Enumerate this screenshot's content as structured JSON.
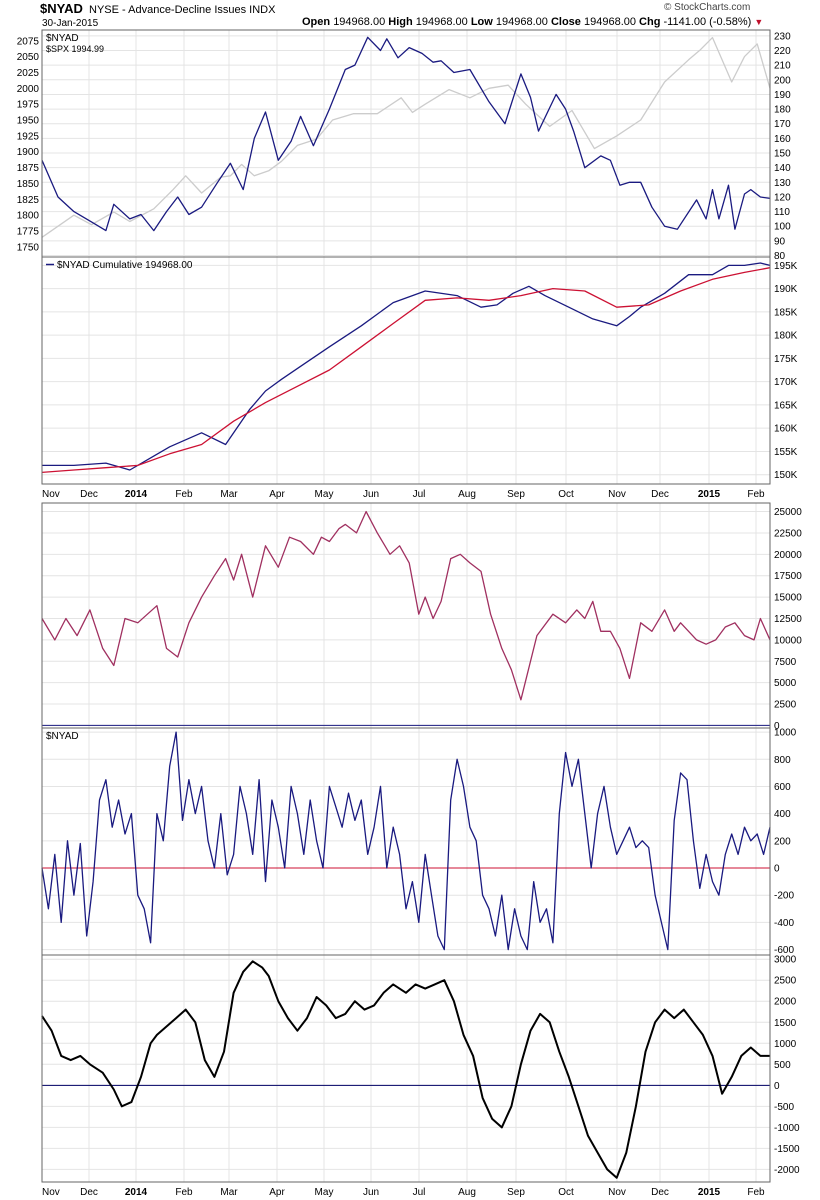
{
  "header": {
    "symbol": "$NYAD",
    "description": "NYSE - Advance-Decline Issues INDX",
    "date": "30-Jan-2015",
    "open_label": "Open",
    "open_value": "194968.00",
    "high_label": "High",
    "high_value": "194968.00",
    "low_label": "Low",
    "low_value": "194968.00",
    "close_label": "Close",
    "close_value": "194968.00",
    "chg_label": "Chg",
    "chg_value": "-1141.00 (-0.58%)",
    "chg_icon": "down-triangle-icon",
    "logo": "© StockCharts.com"
  },
  "colors": {
    "navy": "#1a1a80",
    "gray": "#cccccc",
    "red": "#cc1133",
    "maroon": "#a03060",
    "black": "#000000",
    "grid": "#e4e4e4"
  },
  "chart_data": [
    {
      "type": "line",
      "panel": "price",
      "legend": [
        "$NYAD",
        "$SPX 1994.99"
      ],
      "x_range": [
        0,
        456
      ],
      "left_axis": {
        "ticks": [
          1750,
          1775,
          1800,
          1825,
          1850,
          1875,
          1900,
          1925,
          1950,
          1975,
          2000,
          2025,
          2050,
          2075
        ],
        "range": [
          1734,
          2092
        ]
      },
      "right_axis": {
        "ticks": [
          80,
          90,
          100,
          110,
          120,
          130,
          140,
          150,
          160,
          170,
          180,
          190,
          200,
          210,
          220,
          230
        ],
        "range": [
          79,
          234
        ]
      },
      "series": [
        {
          "name": "$SPX",
          "axis": "left",
          "color": "gray",
          "x": [
            0,
            20,
            31,
            45,
            55,
            70,
            82,
            90,
            100,
            112,
            118,
            125,
            133,
            142,
            150,
            160,
            172,
            182,
            195,
            210,
            225,
            232,
            240,
            255,
            268,
            280,
            292,
            303,
            318,
            332,
            346,
            360,
            375,
            390,
            405,
            412,
            420,
            432,
            440,
            448,
            456
          ],
          "y": [
            1765,
            1800,
            1785,
            1805,
            1790,
            1810,
            1840,
            1862,
            1835,
            1860,
            1862,
            1880,
            1862,
            1870,
            1885,
            1910,
            1920,
            1950,
            1960,
            1960,
            1985,
            1962,
            1975,
            1998,
            1985,
            2000,
            2005,
            1975,
            1940,
            1965,
            1905,
            1925,
            1950,
            2010,
            2045,
            2060,
            2080,
            2010,
            2050,
            2070,
            2000
          ]
        },
        {
          "name": "$NYAD",
          "axis": "right",
          "color": "navy",
          "x": [
            0,
            10,
            20,
            31,
            40,
            45,
            55,
            62,
            70,
            78,
            85,
            92,
            100,
            110,
            118,
            126,
            133,
            140,
            148,
            156,
            162,
            170,
            180,
            190,
            196,
            204,
            212,
            216,
            223,
            230,
            238,
            245,
            250,
            258,
            268,
            280,
            290,
            300,
            306,
            311,
            322,
            328,
            333,
            340,
            350,
            356,
            362,
            368,
            375,
            382,
            390,
            398,
            410,
            416,
            420,
            424,
            430,
            434,
            440,
            444,
            450,
            456
          ],
          "y": [
            145,
            120,
            110,
            103,
            97,
            115,
            105,
            108,
            97,
            110,
            120,
            108,
            113,
            130,
            143,
            125,
            160,
            178,
            145,
            158,
            175,
            155,
            180,
            207,
            210,
            229,
            220,
            228,
            215,
            222,
            218,
            212,
            213,
            205,
            207,
            185,
            170,
            204,
            188,
            165,
            190,
            180,
            165,
            140,
            148,
            145,
            128,
            130,
            130,
            113,
            100,
            98,
            118,
            105,
            125,
            105,
            128,
            98,
            122,
            125,
            120,
            119
          ]
        }
      ]
    },
    {
      "type": "line",
      "panel": "cumulative",
      "legend": [
        "$NYAD Cumulative 194968.00"
      ],
      "x_range": [
        0,
        456
      ],
      "right_axis": {
        "ticks": [
          150000,
          155000,
          160000,
          165000,
          170000,
          175000,
          180000,
          185000,
          190000,
          195000
        ],
        "tick_labels": [
          "150K",
          "155K",
          "160K",
          "165K",
          "170K",
          "175K",
          "180K",
          "185K",
          "190K",
          "195K"
        ],
        "range": [
          148000,
          196800
        ]
      },
      "series": [
        {
          "name": "$NYAD Cumulative",
          "color": "navy",
          "x": [
            0,
            20,
            40,
            55,
            70,
            80,
            100,
            115,
            130,
            140,
            150,
            165,
            180,
            200,
            220,
            240,
            260,
            275,
            285,
            295,
            305,
            315,
            330,
            345,
            360,
            368,
            375,
            390,
            405,
            420,
            430,
            440,
            450,
            456
          ],
          "y": [
            152000,
            152000,
            152500,
            151000,
            154000,
            156000,
            159000,
            156500,
            164000,
            168000,
            170500,
            174000,
            177500,
            182000,
            187000,
            189500,
            188500,
            186000,
            186500,
            189000,
            190500,
            188500,
            186000,
            183500,
            182000,
            184000,
            186000,
            189000,
            193000,
            193000,
            195000,
            195000,
            195500,
            195000
          ]
        },
        {
          "name": "Moving average",
          "color": "red",
          "x": [
            0,
            20,
            40,
            60,
            80,
            100,
            120,
            140,
            160,
            180,
            200,
            220,
            240,
            260,
            280,
            300,
            320,
            340,
            360,
            380,
            400,
            420,
            440,
            456
          ],
          "y": [
            150500,
            151000,
            151500,
            152000,
            154500,
            156500,
            161500,
            165500,
            169000,
            172500,
            177500,
            182500,
            187500,
            188000,
            187500,
            188500,
            190000,
            189500,
            186000,
            186500,
            189500,
            192000,
            193500,
            194500
          ]
        }
      ]
    },
    {
      "type": "line",
      "panel": "oscillator-1",
      "x_range": [
        0,
        456
      ],
      "right_axis": {
        "ticks": [
          0,
          2500,
          5000,
          7500,
          10000,
          12500,
          15000,
          17500,
          20000,
          22500,
          25000
        ],
        "range": [
          -300,
          26000
        ]
      },
      "reference_line": 0,
      "series": [
        {
          "name": "Oscillator",
          "color": "maroon",
          "x": [
            0,
            8,
            15,
            22,
            30,
            38,
            45,
            52,
            60,
            66,
            72,
            78,
            85,
            92,
            100,
            108,
            115,
            120,
            125,
            132,
            140,
            148,
            155,
            162,
            170,
            175,
            180,
            186,
            190,
            197,
            203,
            210,
            218,
            224,
            230,
            236,
            240,
            245,
            250,
            256,
            262,
            268,
            275,
            281,
            288,
            294,
            300,
            310,
            320,
            328,
            335,
            340,
            345,
            350,
            356,
            362,
            368,
            375,
            382,
            390,
            396,
            400,
            410,
            416,
            422,
            428,
            434,
            440,
            446,
            450,
            456
          ],
          "y": [
            12500,
            10000,
            12500,
            10500,
            13500,
            9000,
            7000,
            12500,
            12000,
            13000,
            14000,
            9000,
            8000,
            12000,
            15000,
            17500,
            19500,
            17000,
            20000,
            15000,
            21000,
            18500,
            22000,
            21500,
            20000,
            22000,
            21500,
            23000,
            23500,
            22500,
            25000,
            22500,
            20000,
            21000,
            19000,
            13000,
            15000,
            12500,
            14500,
            19500,
            20000,
            19000,
            18000,
            13000,
            9000,
            6500,
            3000,
            10500,
            13000,
            12000,
            13500,
            12500,
            14500,
            11000,
            11000,
            9000,
            5500,
            12000,
            11000,
            13500,
            11000,
            12000,
            10000,
            9500,
            10000,
            11500,
            12000,
            10500,
            10000,
            12500,
            10000
          ]
        }
      ]
    },
    {
      "type": "line",
      "panel": "nyad-daily",
      "legend": [
        "$NYAD"
      ],
      "x_range": [
        0,
        456
      ],
      "right_axis": {
        "ticks": [
          -600,
          -400,
          -200,
          0,
          200,
          400,
          600,
          800,
          1000
        ],
        "range": [
          -640,
          1030
        ]
      },
      "reference_line": 0,
      "series": [
        {
          "name": "$NYAD",
          "color": "navy",
          "x": [
            0,
            4,
            8,
            12,
            16,
            20,
            24,
            28,
            32,
            36,
            40,
            44,
            48,
            52,
            56,
            60,
            64,
            68,
            72,
            76,
            80,
            84,
            88,
            92,
            96,
            100,
            104,
            108,
            112,
            116,
            120,
            124,
            128,
            132,
            136,
            140,
            144,
            148,
            152,
            156,
            160,
            164,
            168,
            172,
            176,
            180,
            184,
            188,
            192,
            196,
            200,
            204,
            208,
            212,
            216,
            220,
            224,
            228,
            232,
            236,
            240,
            244,
            248,
            252,
            256,
            260,
            264,
            268,
            272,
            276,
            280,
            284,
            288,
            292,
            296,
            300,
            304,
            308,
            312,
            316,
            320,
            324,
            328,
            332,
            336,
            340,
            344,
            348,
            352,
            356,
            360,
            364,
            368,
            372,
            376,
            380,
            384,
            388,
            392,
            396,
            400,
            404,
            408,
            412,
            416,
            420,
            424,
            428,
            432,
            436,
            440,
            444,
            448,
            452,
            456
          ],
          "y": [
            0,
            -300,
            100,
            -400,
            200,
            -200,
            180,
            -500,
            -100,
            500,
            650,
            300,
            500,
            250,
            400,
            -200,
            -300,
            -550,
            400,
            200,
            750,
            1000,
            350,
            650,
            400,
            600,
            200,
            0,
            400,
            -50,
            100,
            600,
            400,
            100,
            650,
            -100,
            500,
            300,
            0,
            600,
            400,
            100,
            500,
            200,
            0,
            600,
            450,
            300,
            550,
            350,
            500,
            100,
            300,
            600,
            0,
            300,
            100,
            -300,
            -100,
            -400,
            100,
            -200,
            -500,
            -600,
            500,
            800,
            600,
            300,
            200,
            -200,
            -300,
            -500,
            -200,
            -600,
            -300,
            -500,
            -600,
            -100,
            -400,
            -300,
            -550,
            400,
            850,
            600,
            800,
            400,
            0,
            400,
            600,
            300,
            100,
            200,
            300,
            150,
            200,
            150,
            -200,
            -400,
            -600,
            350,
            700,
            650,
            200,
            -150,
            100,
            -100,
            -200,
            100,
            250,
            100,
            300,
            200,
            250,
            100,
            300
          ]
        }
      ]
    },
    {
      "type": "line",
      "panel": "oscillator-2",
      "x_range": [
        0,
        456
      ],
      "right_axis": {
        "ticks": [
          -2000,
          -1500,
          -1000,
          -500,
          0,
          500,
          1000,
          1500,
          2000,
          2500,
          3000
        ],
        "range": [
          -2300,
          3100
        ]
      },
      "reference_line": 0,
      "series": [
        {
          "name": "Oscillator",
          "color": "black",
          "x": [
            0,
            6,
            12,
            18,
            24,
            30,
            38,
            45,
            50,
            56,
            62,
            68,
            72,
            78,
            84,
            90,
            96,
            102,
            108,
            114,
            120,
            126,
            132,
            138,
            142,
            148,
            154,
            160,
            166,
            172,
            178,
            184,
            190,
            196,
            202,
            208,
            214,
            220,
            228,
            234,
            240,
            246,
            252,
            258,
            264,
            270,
            276,
            282,
            288,
            294,
            300,
            306,
            312,
            318,
            324,
            330,
            336,
            342,
            348,
            354,
            360,
            366,
            372,
            378,
            384,
            390,
            396,
            402,
            408,
            414,
            420,
            426,
            432,
            438,
            444,
            450,
            456
          ],
          "y": [
            1650,
            1300,
            700,
            600,
            700,
            500,
            300,
            -100,
            -500,
            -400,
            200,
            1000,
            1200,
            1400,
            1600,
            1800,
            1500,
            600,
            200,
            800,
            2200,
            2700,
            2950,
            2800,
            2600,
            2000,
            1600,
            1300,
            1600,
            2100,
            1900,
            1600,
            1700,
            2000,
            1800,
            1900,
            2200,
            2400,
            2200,
            2400,
            2300,
            2400,
            2500,
            2000,
            1200,
            700,
            -300,
            -800,
            -1000,
            -500,
            500,
            1300,
            1700,
            1500,
            800,
            200,
            -500,
            -1200,
            -1600,
            -2000,
            -2200,
            -1600,
            -500,
            800,
            1500,
            1800,
            1600,
            1800,
            1500,
            1200,
            700,
            -200,
            200,
            700,
            900,
            700,
            700
          ]
        }
      ]
    }
  ],
  "x_axis_labels": [
    "Nov",
    "Dec",
    "2014",
    "Feb",
    "Mar",
    "Apr",
    "May",
    "Jun",
    "Jul",
    "Aug",
    "Sep",
    "Oct",
    "Nov",
    "Dec",
    "2015",
    "Feb"
  ],
  "x_axis_bold": [
    "2014",
    "2015"
  ]
}
